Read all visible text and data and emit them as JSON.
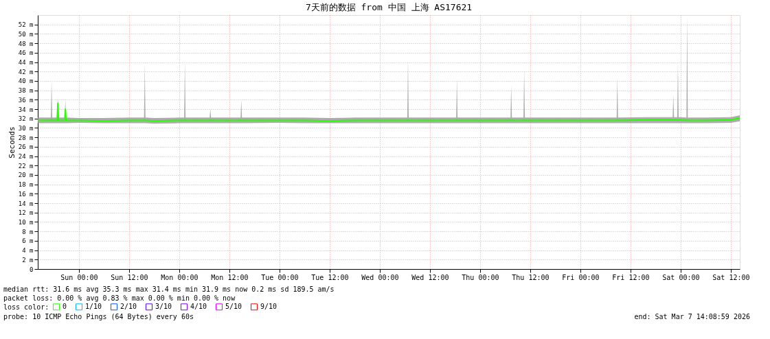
{
  "chart_data": {
    "type": "line",
    "title": "7天前的数据 from 中国 上海 AS17621",
    "ylabel": "Seconds",
    "legend_title": "loss color:",
    "legend": "bottom",
    "grid": true,
    "marker": "none",
    "x": [
      "2026-02-28T14:09",
      "2026-02-28T17:17",
      "2026-02-28T17:27",
      "2026-02-28T17:37",
      "2026-02-28T18:47",
      "2026-02-28T18:57",
      "2026-02-28T19:07",
      "2026-02-28T20:35",
      "2026-02-28T20:45",
      "2026-02-28T20:55",
      "2026-03-01T00:00",
      "2026-03-01T06:00",
      "2026-03-01T12:00",
      "2026-03-01T15:35",
      "2026-03-01T15:45",
      "2026-03-01T15:55",
      "2026-03-01T18:00",
      "2026-03-02T00:00",
      "2026-03-02T01:11",
      "2026-03-02T01:21",
      "2026-03-02T01:31",
      "2026-03-02T07:17",
      "2026-03-02T07:27",
      "2026-03-02T07:37",
      "2026-03-02T14:41",
      "2026-03-02T14:51",
      "2026-03-02T15:01",
      "2026-03-03T00:00",
      "2026-03-03T06:00",
      "2026-03-03T12:00",
      "2026-03-03T18:00",
      "2026-03-04T00:00",
      "2026-03-04T06:35",
      "2026-03-04T06:45",
      "2026-03-04T06:55",
      "2026-03-04T12:00",
      "2026-03-04T18:17",
      "2026-03-04T18:27",
      "2026-03-04T18:37",
      "2026-03-05T00:00",
      "2026-03-05T07:17",
      "2026-03-05T07:27",
      "2026-03-05T07:37",
      "2026-03-05T10:23",
      "2026-03-05T10:33",
      "2026-03-05T10:43",
      "2026-03-05T18:00",
      "2026-03-06T00:00",
      "2026-03-06T08:41",
      "2026-03-06T08:51",
      "2026-03-06T09:01",
      "2026-03-06T16:00",
      "2026-03-06T22:05",
      "2026-03-06T22:15",
      "2026-03-06T22:25",
      "2026-03-06T23:11",
      "2026-03-06T23:21",
      "2026-03-06T23:31",
      "2026-03-07T01:23",
      "2026-03-07T01:33",
      "2026-03-07T01:43",
      "2026-03-07T06:00",
      "2026-03-07T12:00",
      "2026-03-07T14:09"
    ],
    "series": [
      {
        "name": "0",
        "color": "#26ff00",
        "values": [
          31.6,
          31.6,
          31.8,
          31.6,
          31.6,
          35.3,
          31.6,
          31.6,
          34.0,
          31.6,
          31.6,
          31.5,
          31.6,
          31.6,
          31.7,
          31.6,
          31.5,
          31.6,
          31.6,
          31.7,
          31.6,
          31.6,
          31.7,
          31.6,
          31.6,
          31.7,
          31.6,
          31.6,
          31.6,
          31.5,
          31.6,
          31.6,
          31.6,
          31.7,
          31.6,
          31.6,
          31.6,
          31.7,
          31.6,
          31.6,
          31.6,
          31.7,
          31.6,
          31.6,
          31.7,
          31.6,
          31.6,
          31.6,
          31.6,
          31.7,
          31.6,
          31.7,
          31.7,
          31.7,
          31.7,
          31.7,
          31.7,
          31.7,
          31.6,
          31.8,
          31.6,
          31.6,
          31.7,
          32.1
        ],
        "lower": [
          31.0,
          31.0,
          31.0,
          31.0,
          31.0,
          31.0,
          31.0,
          31.0,
          31.0,
          31.0,
          31.1,
          31.0,
          31.0,
          31.0,
          31.0,
          31.0,
          30.9,
          31.0,
          31.0,
          31.0,
          31.0,
          31.0,
          31.0,
          31.0,
          31.0,
          31.0,
          31.0,
          31.1,
          31.0,
          31.0,
          31.0,
          31.0,
          31.0,
          31.0,
          31.0,
          31.0,
          31.0,
          31.0,
          31.0,
          31.0,
          31.0,
          31.0,
          31.0,
          31.0,
          31.0,
          31.0,
          31.0,
          31.0,
          31.0,
          31.0,
          31.0,
          31.0,
          31.0,
          31.0,
          31.0,
          31.0,
          31.0,
          31.0,
          31.0,
          31.0,
          31.0,
          31.0,
          31.1,
          31.4
        ],
        "upper": [
          32.2,
          32.2,
          40.0,
          32.2,
          32.2,
          36.5,
          32.2,
          32.2,
          36.0,
          32.2,
          32.1,
          32.1,
          32.2,
          32.2,
          43.5,
          32.2,
          32.1,
          32.2,
          32.2,
          44.0,
          32.2,
          32.2,
          34.0,
          32.2,
          32.2,
          36.0,
          32.2,
          32.2,
          32.2,
          32.1,
          32.2,
          32.2,
          32.2,
          44.5,
          32.2,
          32.2,
          32.2,
          40.3,
          32.2,
          32.2,
          32.2,
          39.0,
          32.2,
          32.2,
          42.5,
          32.2,
          32.2,
          32.2,
          32.2,
          40.7,
          32.2,
          32.3,
          32.3,
          37.0,
          32.3,
          32.3,
          43.8,
          32.3,
          32.2,
          53.8,
          32.2,
          32.2,
          32.3,
          32.7
        ]
      },
      {
        "name": "1/10",
        "color": "#00b8ff",
        "values": [
          null,
          null,
          null,
          null,
          null,
          null,
          null,
          null,
          null,
          null,
          null,
          null,
          null,
          null,
          null,
          null,
          null,
          null,
          null,
          null,
          null,
          null,
          null,
          null,
          null,
          null,
          null,
          null,
          null,
          null,
          null,
          null,
          null,
          null,
          null,
          null,
          null,
          null,
          null,
          null,
          null,
          null,
          null,
          null,
          null,
          null,
          null,
          null,
          null,
          null,
          null,
          null,
          null,
          null,
          null,
          null,
          null,
          null,
          null,
          null,
          null,
          null,
          null,
          null
        ]
      },
      {
        "name": "2/10",
        "color": "#0059ff",
        "values": [
          null,
          null,
          null,
          null,
          null,
          null,
          null,
          null,
          null,
          null,
          null,
          null,
          null,
          null,
          null,
          null,
          null,
          null,
          null,
          null,
          null,
          null,
          null,
          null,
          null,
          null,
          null,
          null,
          null,
          null,
          null,
          null,
          null,
          null,
          null,
          null,
          null,
          null,
          null,
          null,
          null,
          null,
          null,
          null,
          null,
          null,
          null,
          null,
          null,
          null,
          null,
          null,
          null,
          null,
          null,
          null,
          null,
          null,
          null,
          null,
          null,
          null,
          null,
          null
        ]
      },
      {
        "name": "3/10",
        "color": "#5e00ff",
        "values": [
          null,
          null,
          null,
          null,
          null,
          null,
          null,
          null,
          null,
          null,
          null,
          null,
          null,
          null,
          null,
          null,
          null,
          null,
          null,
          null,
          null,
          null,
          null,
          null,
          null,
          null,
          null,
          null,
          null,
          null,
          null,
          null,
          null,
          null,
          null,
          null,
          null,
          null,
          null,
          null,
          null,
          null,
          null,
          null,
          null,
          null,
          null,
          null,
          null,
          null,
          null,
          null,
          null,
          null,
          null,
          null,
          null,
          null,
          null,
          null,
          null,
          null,
          null,
          null
        ]
      },
      {
        "name": "4/10",
        "color": "#7e00ff",
        "values": [
          null,
          null,
          null,
          null,
          null,
          null,
          null,
          null,
          null,
          null,
          null,
          null,
          null,
          null,
          null,
          null,
          null,
          null,
          null,
          null,
          null,
          null,
          null,
          null,
          null,
          null,
          null,
          null,
          null,
          null,
          null,
          null,
          null,
          null,
          null,
          null,
          null,
          null,
          null,
          null,
          null,
          null,
          null,
          null,
          null,
          null,
          null,
          null,
          null,
          null,
          null,
          null,
          null,
          null,
          null,
          null,
          null,
          null,
          null,
          null,
          null,
          null,
          null,
          null
        ]
      },
      {
        "name": "5/10",
        "color": "#dd00ff",
        "values": [
          null,
          null,
          null,
          null,
          null,
          null,
          null,
          null,
          null,
          null,
          null,
          null,
          null,
          null,
          null,
          null,
          null,
          null,
          null,
          null,
          null,
          null,
          null,
          null,
          null,
          null,
          null,
          null,
          null,
          null,
          null,
          null,
          null,
          null,
          null,
          null,
          null,
          null,
          null,
          null,
          null,
          null,
          null,
          null,
          null,
          null,
          null,
          null,
          null,
          null,
          null,
          null,
          null,
          null,
          null,
          null,
          null,
          null,
          null,
          null,
          null,
          null,
          null,
          null
        ]
      },
      {
        "name": "9/10",
        "color": "#ff0000",
        "values": [
          null,
          null,
          null,
          null,
          null,
          null,
          null,
          null,
          null,
          null,
          null,
          null,
          null,
          null,
          null,
          null,
          null,
          null,
          null,
          null,
          null,
          null,
          null,
          null,
          null,
          null,
          null,
          null,
          null,
          null,
          null,
          null,
          null,
          null,
          null,
          null,
          null,
          null,
          null,
          null,
          null,
          null,
          null,
          null,
          null,
          null,
          null,
          null,
          null,
          null,
          null,
          null,
          null,
          null,
          null,
          null,
          null,
          null,
          null,
          null,
          null,
          null,
          null,
          null
        ]
      }
    ],
    "xlim": [
      "2026-02-28T14:09",
      "2026-03-07T14:09"
    ],
    "xticks": [
      {
        "value": "2026-03-01T00:00",
        "label": "Sun 00:00"
      },
      {
        "value": "2026-03-01T12:00",
        "label": "Sun 12:00"
      },
      {
        "value": "2026-03-02T00:00",
        "label": "Mon 00:00"
      },
      {
        "value": "2026-03-02T12:00",
        "label": "Mon 12:00"
      },
      {
        "value": "2026-03-03T00:00",
        "label": "Tue 00:00"
      },
      {
        "value": "2026-03-03T12:00",
        "label": "Tue 12:00"
      },
      {
        "value": "2026-03-04T00:00",
        "label": "Wed 00:00"
      },
      {
        "value": "2026-03-04T12:00",
        "label": "Wed 12:00"
      },
      {
        "value": "2026-03-05T00:00",
        "label": "Thu 00:00"
      },
      {
        "value": "2026-03-05T12:00",
        "label": "Thu 12:00"
      },
      {
        "value": "2026-03-06T00:00",
        "label": "Fri 00:00"
      },
      {
        "value": "2026-03-06T12:00",
        "label": "Fri 12:00"
      },
      {
        "value": "2026-03-07T00:00",
        "label": "Sat 00:00"
      },
      {
        "value": "2026-03-07T12:00",
        "label": "Sat 12:00"
      }
    ],
    "ylim": [
      0,
      54
    ],
    "yticks": [
      0,
      {
        "value": 2,
        "label": "2 m"
      },
      {
        "value": 4,
        "label": "4 m"
      },
      {
        "value": 6,
        "label": "6 m"
      },
      {
        "value": 8,
        "label": "8 m"
      },
      {
        "value": 10,
        "label": "10 m"
      },
      {
        "value": 12,
        "label": "12 m"
      },
      {
        "value": 14,
        "label": "14 m"
      },
      {
        "value": 16,
        "label": "16 m"
      },
      {
        "value": 18,
        "label": "18 m"
      },
      {
        "value": 20,
        "label": "20 m"
      },
      {
        "value": 22,
        "label": "22 m"
      },
      {
        "value": 24,
        "label": "24 m"
      },
      {
        "value": 26,
        "label": "26 m"
      },
      {
        "value": 28,
        "label": "28 m"
      },
      {
        "value": 30,
        "label": "30 m"
      },
      {
        "value": 32,
        "label": "32 m"
      },
      {
        "value": 34,
        "label": "34 m"
      },
      {
        "value": 36,
        "label": "36 m"
      },
      {
        "value": 38,
        "label": "38 m"
      },
      {
        "value": 40,
        "label": "40 m"
      },
      {
        "value": 42,
        "label": "42 m"
      },
      {
        "value": 44,
        "label": "44 m"
      },
      {
        "value": 46,
        "label": "46 m"
      },
      {
        "value": 48,
        "label": "48 m"
      },
      {
        "value": 50,
        "label": "50 m"
      },
      {
        "value": 52,
        "label": "52 m"
      }
    ],
    "annotations": [
      "median rtt:  31.6 ms avg  35.3 ms max  31.4 ms min  31.9 ms now  0.2 ms sd  189.5   am/s",
      "packet loss: 0.00 % avg  0.83 % max  0.00 % min  0.00 % now",
      "probe:       10 ICMP Echo Pings (64 Bytes) every 60s",
      "end: Sat Mar  7 14:08:59 2026"
    ]
  }
}
